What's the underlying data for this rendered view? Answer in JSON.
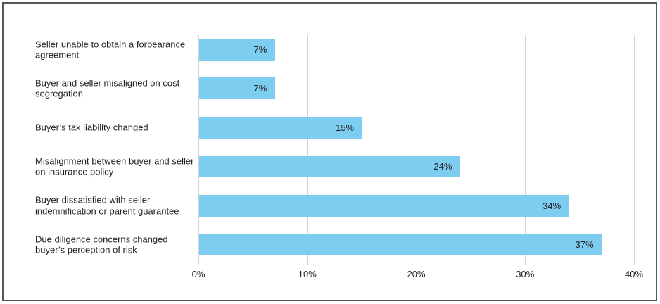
{
  "chart": {
    "bar_color": "#7DCDF0",
    "grid_color": "#D4D4D6",
    "text_color": "#231F20",
    "frame_border_color": "#55565A",
    "background_color": "#FFFFFF"
  },
  "chart_data": {
    "type": "bar",
    "orientation": "horizontal",
    "title": "",
    "xlabel": "",
    "ylabel": "",
    "categories": [
      "Seller unable to obtain a forbearance agreement",
      "Buyer and seller misaligned on cost segregation",
      "Buyer’s tax liability changed",
      "Misalignment between buyer and seller on insurance policy",
      "Buyer dissatisfied with seller indemnification or parent guarantee",
      "Due diligence concerns changed buyer’s perception of risk"
    ],
    "values": [
      7,
      7,
      15,
      24,
      34,
      37
    ],
    "value_labels": [
      "7%",
      "7%",
      "15%",
      "24%",
      "34%",
      "37%"
    ],
    "x_ticks": [
      0,
      10,
      20,
      30,
      40
    ],
    "x_tick_labels": [
      "0%",
      "10%",
      "20%",
      "30%",
      "40%"
    ],
    "xlim": [
      0,
      40
    ],
    "grid": "vertical",
    "legend": "none",
    "value_label_position": "inside-end"
  }
}
